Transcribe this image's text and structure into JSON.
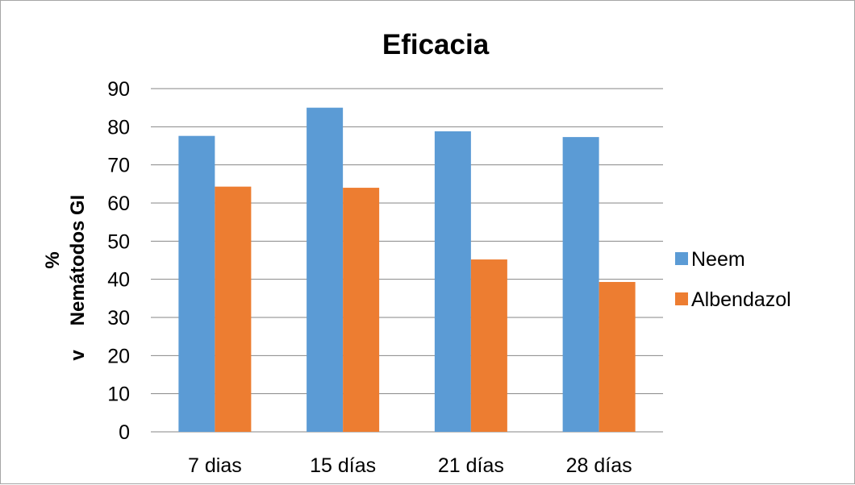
{
  "chart_data": {
    "type": "bar",
    "title": "Eficacia",
    "ylabel_lines": [
      "%",
      "Nemátodos GI",
      "v"
    ],
    "xlabel": "",
    "categories": [
      "7 dias",
      "15 días",
      "21 días",
      "28 días"
    ],
    "series": [
      {
        "name": "Neem",
        "color": "#5b9bd5",
        "values": [
          77.6,
          85.0,
          78.8,
          77.3
        ]
      },
      {
        "name": "Albendazol",
        "color": "#ed7d31",
        "values": [
          64.3,
          64.0,
          45.2,
          39.3
        ]
      }
    ],
    "ylim": [
      0,
      90
    ],
    "yticks": [
      0,
      10,
      20,
      30,
      40,
      50,
      60,
      70,
      80,
      90
    ],
    "grid": true,
    "grid_color": "#868686",
    "legend_position": "right"
  }
}
